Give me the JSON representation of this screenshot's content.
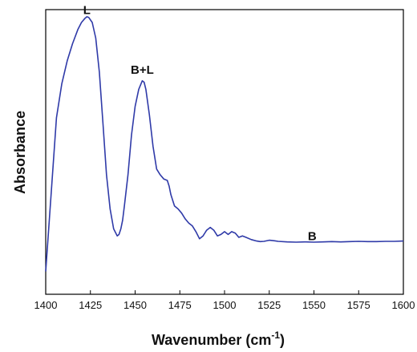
{
  "chart_data": {
    "type": "line",
    "xlabel": "Wavenumber (cm",
    "xlabel_sup": "-1",
    "xlabel_close": ")",
    "ylabel": "Absorbance",
    "xlim": [
      1400,
      1600
    ],
    "ylim": [
      0,
      1
    ],
    "x_ticks": [
      1400,
      1425,
      1450,
      1475,
      1500,
      1525,
      1550,
      1575,
      1600
    ],
    "y_tick_labels": false,
    "grid": false,
    "line_color": "#2f3aa8",
    "annotations": [
      {
        "text": "L",
        "x": 1423,
        "y": 0.985
      },
      {
        "text": "B+L",
        "x": 1454,
        "y": 0.775
      },
      {
        "text": "B",
        "x": 1549,
        "y": 0.19
      }
    ],
    "series": [
      {
        "x": [
          1400,
          1403,
          1406,
          1409,
          1412,
          1415,
          1418,
          1420,
          1422,
          1423,
          1424,
          1426,
          1428,
          1430,
          1432,
          1434,
          1436,
          1438,
          1440,
          1441,
          1442,
          1443,
          1444,
          1446,
          1448,
          1450,
          1452,
          1454,
          1455,
          1456,
          1458,
          1460,
          1462,
          1464,
          1466,
          1468,
          1469,
          1470,
          1472,
          1474,
          1476,
          1478,
          1480,
          1482,
          1484,
          1486,
          1488,
          1490,
          1492,
          1494,
          1496,
          1498,
          1500,
          1502,
          1504,
          1506,
          1508,
          1510,
          1512,
          1515,
          1518,
          1520,
          1522,
          1525,
          1528,
          1530,
          1535,
          1540,
          1545,
          1550,
          1555,
          1560,
          1565,
          1570,
          1575,
          1580,
          1585,
          1590,
          1595,
          1600
        ],
        "y": [
          0.08,
          0.35,
          0.62,
          0.74,
          0.82,
          0.88,
          0.93,
          0.955,
          0.97,
          0.975,
          0.973,
          0.955,
          0.9,
          0.78,
          0.6,
          0.42,
          0.3,
          0.23,
          0.205,
          0.21,
          0.23,
          0.26,
          0.31,
          0.42,
          0.56,
          0.66,
          0.72,
          0.75,
          0.745,
          0.72,
          0.63,
          0.52,
          0.44,
          0.42,
          0.405,
          0.4,
          0.38,
          0.35,
          0.31,
          0.3,
          0.285,
          0.265,
          0.25,
          0.24,
          0.22,
          0.195,
          0.205,
          0.225,
          0.235,
          0.225,
          0.205,
          0.21,
          0.22,
          0.21,
          0.22,
          0.215,
          0.2,
          0.205,
          0.2,
          0.192,
          0.187,
          0.185,
          0.186,
          0.19,
          0.188,
          0.186,
          0.184,
          0.183,
          0.184,
          0.183,
          0.184,
          0.185,
          0.184,
          0.185,
          0.186,
          0.185,
          0.185,
          0.186,
          0.186,
          0.187
        ]
      }
    ]
  }
}
